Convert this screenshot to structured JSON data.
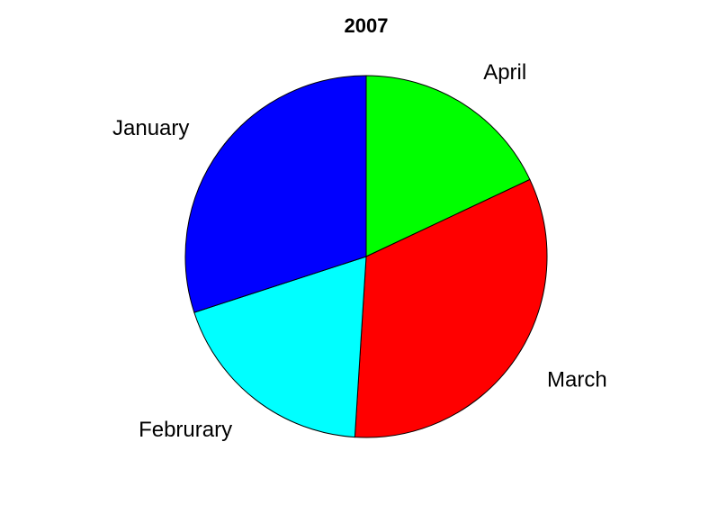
{
  "chart_data": {
    "type": "pie",
    "title": "2007",
    "start_angle_deg": 90,
    "direction": "clockwise",
    "slices": [
      {
        "label": "April",
        "value": 18,
        "color": "#00ff00"
      },
      {
        "label": "March",
        "value": 33,
        "color": "#ff0000"
      },
      {
        "label": "Februrary",
        "value": 19,
        "color": "#00ffff"
      },
      {
        "label": "January",
        "value": 30,
        "color": "#0000ff"
      }
    ]
  }
}
